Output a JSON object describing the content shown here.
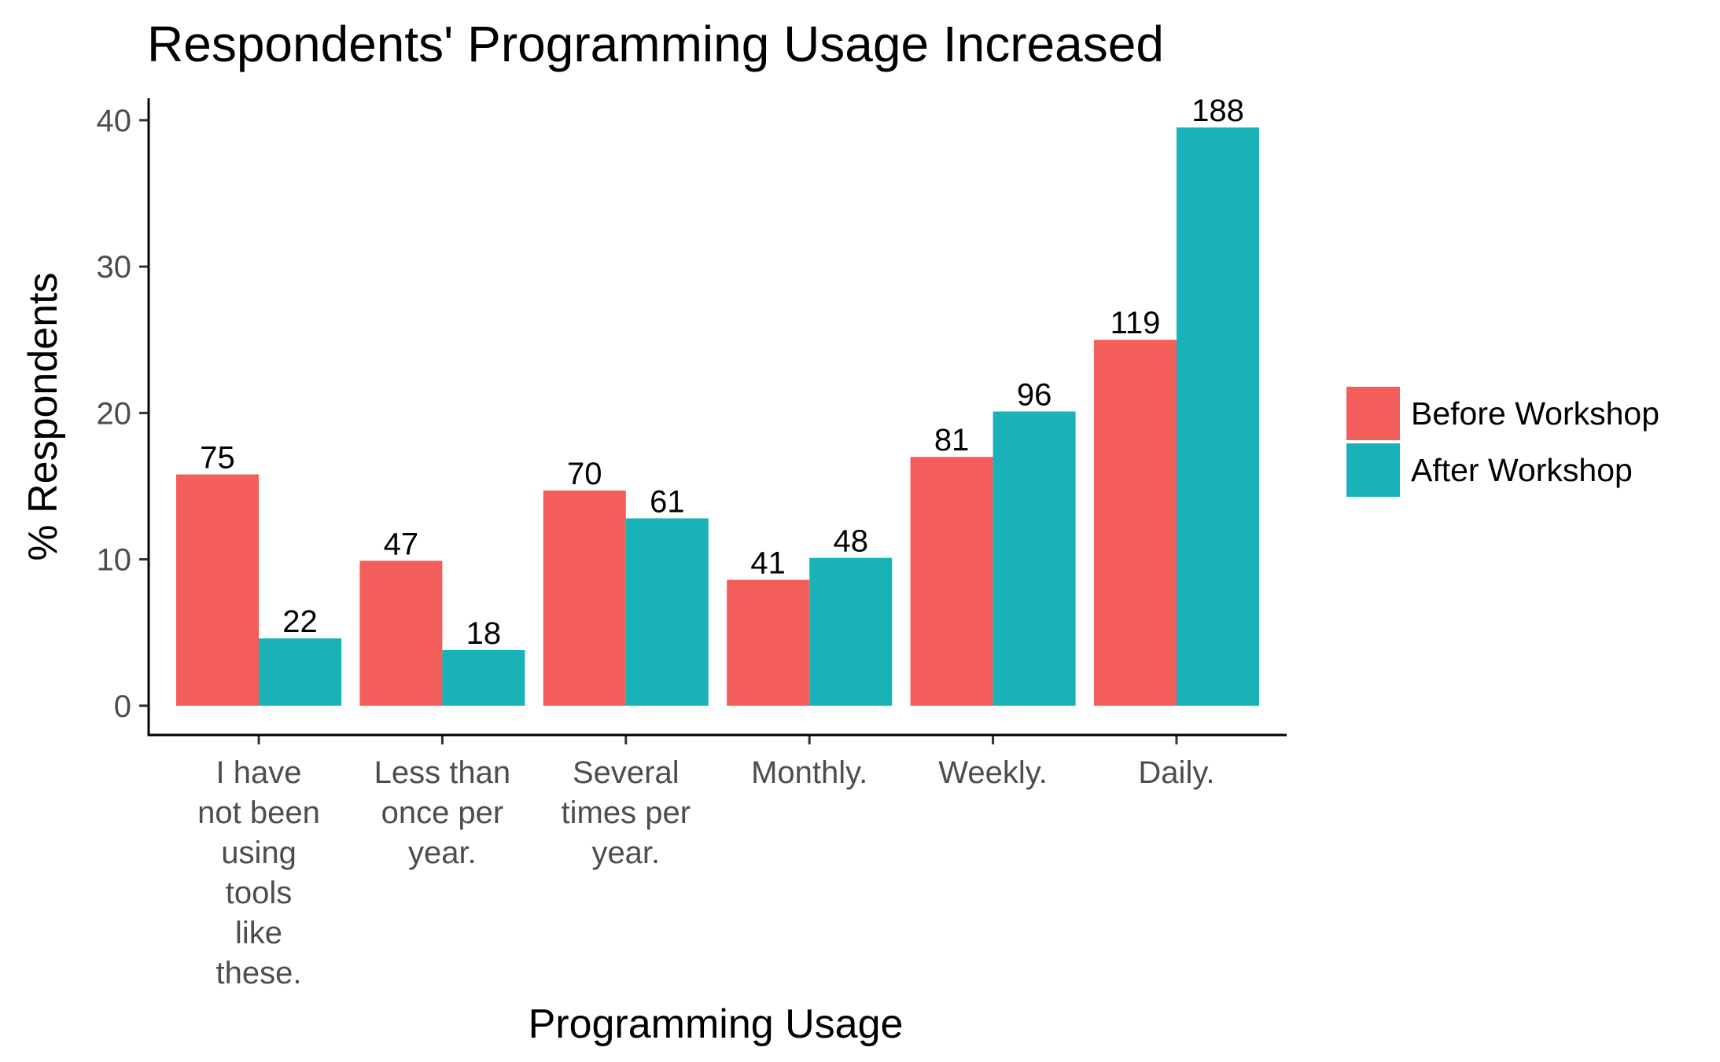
{
  "chart_data": {
    "type": "bar",
    "title": "Respondents' Programming Usage Increased",
    "xlabel": "Programming Usage",
    "ylabel": "% Respondents",
    "ylim": [
      -2,
      41.5
    ],
    "yticks": [
      0,
      10,
      20,
      30,
      40
    ],
    "grid": false,
    "legend_position": "right",
    "categories": [
      [
        "I have",
        "not been",
        "using",
        "tools",
        "like",
        "these."
      ],
      [
        "Less than",
        "once per",
        "year."
      ],
      [
        "Several",
        "times per",
        "year."
      ],
      [
        "Monthly."
      ],
      [
        "Weekly."
      ],
      [
        "Daily."
      ]
    ],
    "series": [
      {
        "name": "Before Workshop",
        "color": "#F35E5A",
        "values": [
          15.8,
          9.9,
          14.7,
          8.6,
          17.0,
          25.0
        ],
        "labels": [
          "75",
          "47",
          "70",
          "41",
          "81",
          "119"
        ]
      },
      {
        "name": "After Workshop",
        "color": "#19B2B8",
        "values": [
          4.6,
          3.8,
          12.8,
          10.1,
          20.1,
          39.5
        ],
        "labels": [
          "22",
          "18",
          "61",
          "48",
          "96",
          "188"
        ]
      }
    ]
  }
}
